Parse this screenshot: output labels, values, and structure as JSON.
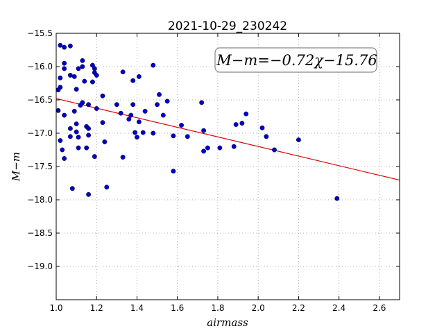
{
  "chart_data": {
    "type": "scatter",
    "title": "2021-10-29_230242",
    "xlabel": "airmass",
    "ylabel": "M−m",
    "xlim": [
      1.0,
      2.7
    ],
    "ylim": [
      -15.5,
      -19.5
    ],
    "y_inverted": true,
    "x_ticks": [
      1.0,
      1.2,
      1.4,
      1.6,
      1.8,
      2.0,
      2.2,
      2.4,
      2.6
    ],
    "x_tick_labels": [
      "1.0",
      "1.2",
      "1.4",
      "1.6",
      "1.8",
      "2.0",
      "2.2",
      "2.4",
      "2.6"
    ],
    "y_ticks": [
      -15.5,
      -16.0,
      -16.5,
      -17.0,
      -17.5,
      -18.0,
      -18.5,
      -19.0
    ],
    "y_tick_labels": [
      "−15.5",
      "−16.0",
      "−16.5",
      "−17.0",
      "−17.5",
      "−18.0",
      "−18.5",
      "−19.0"
    ],
    "grid": true,
    "annotation": "M−m=−0.72χ−15.76",
    "fit": {
      "slope": -0.72,
      "intercept": -15.76,
      "color": "#e00000"
    },
    "point_color": "#0000cc",
    "points": [
      [
        1.02,
        -15.68
      ],
      [
        1.04,
        -15.71
      ],
      [
        1.07,
        -15.69
      ],
      [
        1.04,
        -15.95
      ],
      [
        1.04,
        -16.03
      ],
      [
        1.02,
        -16.17
      ],
      [
        1.02,
        -16.31
      ],
      [
        1.01,
        -16.35
      ],
      [
        1.07,
        -16.13
      ],
      [
        1.09,
        -16.15
      ],
      [
        1.11,
        -16.03
      ],
      [
        1.13,
        -16.0
      ],
      [
        1.13,
        -15.91
      ],
      [
        1.18,
        -15.98
      ],
      [
        1.19,
        -16.03
      ],
      [
        1.19,
        -16.09
      ],
      [
        1.2,
        -16.13
      ],
      [
        1.14,
        -16.22
      ],
      [
        1.18,
        -16.23
      ],
      [
        1.1,
        -16.34
      ],
      [
        1.13,
        -16.54
      ],
      [
        1.12,
        -16.58
      ],
      [
        1.16,
        -16.57
      ],
      [
        1.2,
        -16.63
      ],
      [
        1.01,
        -16.66
      ],
      [
        1.09,
        -16.67
      ],
      [
        1.04,
        -16.73
      ],
      [
        1.1,
        -16.86
      ],
      [
        1.15,
        -16.9
      ],
      [
        1.16,
        -16.93
      ],
      [
        1.07,
        -16.93
      ],
      [
        1.1,
        -16.98
      ],
      [
        1.07,
        -17.05
      ],
      [
        1.11,
        -17.06
      ],
      [
        1.16,
        -17.03
      ],
      [
        1.02,
        -17.11
      ],
      [
        1.03,
        -17.25
      ],
      [
        1.04,
        -17.38
      ],
      [
        1.11,
        -17.22
      ],
      [
        1.15,
        -17.22
      ],
      [
        1.19,
        -17.35
      ],
      [
        1.08,
        -17.83
      ],
      [
        1.16,
        -17.92
      ],
      [
        1.25,
        -17.81
      ],
      [
        1.23,
        -16.44
      ],
      [
        1.23,
        -16.84
      ],
      [
        1.24,
        -17.13
      ],
      [
        1.3,
        -16.57
      ],
      [
        1.32,
        -16.7
      ],
      [
        1.33,
        -16.08
      ],
      [
        1.33,
        -17.36
      ],
      [
        1.37,
        -16.73
      ],
      [
        1.38,
        -16.21
      ],
      [
        1.38,
        -16.57
      ],
      [
        1.36,
        -16.79
      ],
      [
        1.39,
        -16.99
      ],
      [
        1.4,
        -17.06
      ],
      [
        1.41,
        -16.15
      ],
      [
        1.41,
        -16.83
      ],
      [
        1.43,
        -16.99
      ],
      [
        1.44,
        -16.67
      ],
      [
        1.48,
        -15.98
      ],
      [
        1.48,
        -17.0
      ],
      [
        1.5,
        -16.57
      ],
      [
        1.51,
        -16.42
      ],
      [
        1.53,
        -16.73
      ],
      [
        1.55,
        -16.52
      ],
      [
        1.58,
        -17.04
      ],
      [
        1.58,
        -17.57
      ],
      [
        1.62,
        -16.88
      ],
      [
        1.65,
        -17.05
      ],
      [
        1.72,
        -16.54
      ],
      [
        1.73,
        -16.96
      ],
      [
        1.73,
        -17.27
      ],
      [
        1.75,
        -17.22
      ],
      [
        1.81,
        -17.22
      ],
      [
        1.88,
        -17.2
      ],
      [
        1.89,
        -16.87
      ],
      [
        1.92,
        -16.85
      ],
      [
        1.94,
        -16.71
      ],
      [
        2.02,
        -16.92
      ],
      [
        2.04,
        -17.05
      ],
      [
        2.08,
        -17.25
      ],
      [
        2.2,
        -17.1
      ],
      [
        2.39,
        -17.98
      ]
    ]
  }
}
